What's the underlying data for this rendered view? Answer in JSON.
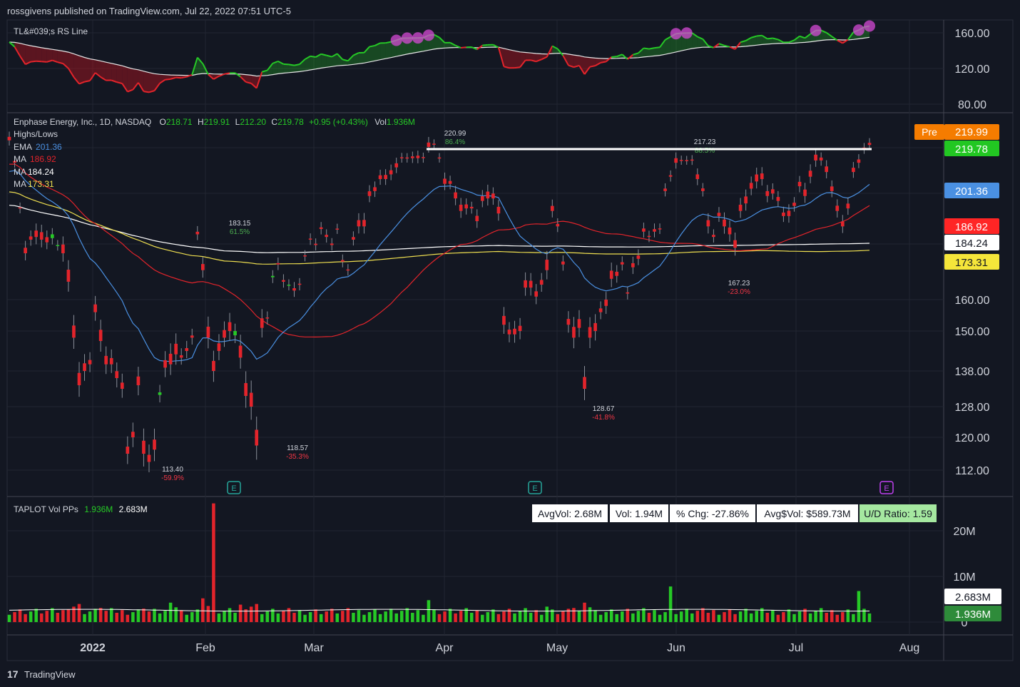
{
  "header": {
    "publisher": "rossgivens published on TradingView.com, Jul 22, 2022 07:51 UTC-5"
  },
  "footer": {
    "brand": "TradingView"
  },
  "colors": {
    "bg": "#131722",
    "panel": "#161a25",
    "grid": "#222631",
    "up": "#26c926",
    "down": "#e3242b",
    "text": "#d1d4dc",
    "ema": "#4a90e2",
    "ma1": "#e3242b",
    "ma2": "#ffffff",
    "ma3": "#f0e050",
    "pre": "#f57c00",
    "price": "#22c722",
    "magenta": "#d54ad5"
  },
  "x_axis": {
    "labels": [
      "2022",
      "Feb",
      "Mar",
      "Apr",
      "May",
      "Jun",
      "Jul",
      "Aug"
    ]
  },
  "rs_panel": {
    "title": "TL&#039;s RS Line",
    "y_ticks": [
      "160.00",
      "120.00",
      "80.00"
    ],
    "y_values": [
      160,
      120,
      80
    ]
  },
  "price_panel": {
    "legend": {
      "name": "Enphase Energy, Inc., 1D, NASDAQ",
      "o_label": "O",
      "o": "218.71",
      "h_label": "H",
      "h": "219.91",
      "l_label": "L",
      "l": "212.20",
      "c_label": "C",
      "c": "219.78",
      "change": "+0.95 (+0.43%)",
      "vol_label": "Vol",
      "vol": "1.936M",
      "highs_lows": "Highs/Lows",
      "ema_label": "EMA",
      "ema_value": "201.36",
      "ma1_label": "MA",
      "ma1_value": "186.92",
      "ma2_label": "MA",
      "ma2_value": "184.24",
      "ma3_label": "MA",
      "ma3_value": "173.31"
    },
    "y_ticks": [
      "160.00",
      "150.00",
      "138.00",
      "128.00",
      "120.00",
      "112.00"
    ],
    "y_values": [
      160,
      150,
      138,
      128,
      120,
      112
    ],
    "badges": {
      "pre_label": "Pre",
      "pre_value": "219.99",
      "last": "219.78",
      "ema": "201.36",
      "ma1": "186.92",
      "ma2": "184.24",
      "ma3": "173.31"
    },
    "pivots": [
      {
        "price": "220.99",
        "pct": "86.4%",
        "up": true
      },
      {
        "price": "217.23",
        "pct": "88.5%",
        "up": true
      },
      {
        "price": "183.15",
        "pct": "61.5%",
        "up": true
      },
      {
        "price": "113.40",
        "pct": "-59.9%",
        "up": false
      },
      {
        "price": "118.57",
        "pct": "-35.3%",
        "up": false
      },
      {
        "price": "128.67",
        "pct": "-41.8%",
        "up": false
      },
      {
        "price": "167.23",
        "pct": "-23.0%",
        "up": false
      }
    ],
    "earnings_marker": "E"
  },
  "volume_panel": {
    "title": "TAPLOT Vol PPs",
    "v1": "1.936M",
    "v2": "2.683M",
    "y_ticks": [
      "20M",
      "10M",
      "0"
    ],
    "badges": {
      "avg": "2.683M",
      "last": "1.936M"
    },
    "stats": [
      {
        "label": "AvgVol: 2.68M"
      },
      {
        "label": "Vol: 1.94M"
      },
      {
        "label": "% Chg: -27.86%"
      },
      {
        "label": "Avg$Vol: $589.73M"
      },
      {
        "label": "U/D Ratio: 1.59"
      }
    ]
  },
  "chart_data": {
    "type": "candlestick",
    "ticker": "Enphase Energy, Inc., 1D, NASDAQ",
    "candles": [
      [
        -20,
        222
      ],
      [
        -10,
        212
      ],
      [
        -5,
        193
      ],
      [
        -25,
        176
      ],
      [
        -15,
        181
      ],
      [
        -30,
        182
      ],
      [
        -35,
        181
      ],
      [
        -24,
        180
      ],
      [
        18,
        183
      ],
      [
        2,
        179
      ],
      [
        -40,
        176
      ],
      [
        -52,
        166
      ],
      [
        -52,
        148
      ],
      [
        -48,
        134
      ],
      [
        -32,
        138
      ],
      [
        -18,
        140
      ],
      [
        -31,
        156
      ],
      [
        -47,
        147
      ],
      [
        -35,
        140
      ],
      [
        -26,
        140
      ],
      [
        -27,
        136
      ],
      [
        -24,
        133
      ],
      [
        -24,
        116
      ],
      [
        -20,
        120
      ],
      [
        -34,
        134
      ],
      [
        -44,
        116
      ],
      [
        -24,
        114
      ],
      [
        -34,
        117
      ],
      [
        10,
        132
      ],
      [
        -31,
        139
      ],
      [
        -44,
        140
      ],
      [
        -44,
        143
      ],
      [
        -10,
        142
      ],
      [
        -12,
        144
      ],
      [
        -9,
        148
      ],
      [
        -12,
        183
      ],
      [
        -27,
        170
      ],
      [
        -47,
        148
      ],
      [
        -42,
        138
      ],
      [
        -32,
        144
      ],
      [
        -32,
        148
      ],
      [
        -39,
        150
      ],
      [
        18,
        150
      ],
      [
        -50,
        142
      ],
      [
        -50,
        131
      ],
      [
        -54,
        128
      ],
      [
        -55,
        118
      ],
      [
        -38,
        151
      ],
      [
        -4,
        154
      ],
      [
        6,
        168
      ],
      [
        -6,
        172
      ],
      [
        -7,
        166
      ],
      [
        1,
        165
      ],
      [
        -10,
        163
      ],
      [
        -4,
        165
      ],
      [
        -3,
        175
      ],
      [
        -5,
        181
      ],
      [
        -6,
        179
      ],
      [
        -8,
        185
      ],
      [
        -10,
        182
      ],
      [
        -7,
        179
      ],
      [
        -2,
        185
      ],
      [
        -7,
        173
      ],
      [
        -3,
        170
      ],
      [
        -12,
        181
      ],
      [
        -30,
        186
      ],
      [
        -31,
        186
      ],
      [
        -24,
        198
      ],
      [
        -20,
        200
      ],
      [
        -20,
        205
      ],
      [
        -22,
        205
      ],
      [
        -22,
        207
      ],
      [
        -22,
        210
      ],
      [
        -5,
        214
      ],
      [
        -4,
        214
      ],
      [
        -10,
        214
      ],
      [
        -14,
        214
      ],
      [
        -6,
        214
      ],
      [
        -25,
        219
      ],
      [
        -6,
        220
      ],
      [
        -4,
        214
      ],
      [
        -27,
        203
      ],
      [
        -15,
        203
      ],
      [
        -31,
        197
      ],
      [
        -31,
        192
      ],
      [
        -20,
        193
      ],
      [
        -8,
        193
      ],
      [
        -26,
        188
      ],
      [
        -24,
        196
      ],
      [
        -35,
        197
      ],
      [
        -25,
        197
      ],
      [
        -33,
        191
      ],
      [
        -35,
        152
      ],
      [
        -20,
        149
      ],
      [
        -24,
        149
      ],
      [
        -23,
        150
      ],
      [
        -31,
        164
      ],
      [
        -29,
        164
      ],
      [
        -22,
        161
      ],
      [
        -20,
        165
      ],
      [
        -46,
        170
      ],
      [
        -25,
        192
      ],
      [
        -12,
        186
      ],
      [
        -13,
        172
      ],
      [
        -23,
        152
      ],
      [
        -46,
        148
      ],
      [
        -35,
        151
      ],
      [
        -46,
        133
      ],
      [
        -45,
        148
      ],
      [
        -35,
        150
      ],
      [
        -15,
        156
      ],
      [
        -25,
        158
      ],
      [
        -35,
        167
      ],
      [
        -18,
        168
      ],
      [
        -10,
        172
      ],
      [
        -5,
        162
      ],
      [
        -18,
        171
      ],
      [
        -15,
        174
      ],
      [
        -15,
        184
      ],
      [
        -5,
        182
      ],
      [
        -12,
        184
      ],
      [
        -3,
        185
      ],
      [
        -13,
        200
      ],
      [
        -8,
        206
      ],
      [
        -25,
        212
      ],
      [
        -3,
        213
      ],
      [
        -2,
        213
      ],
      [
        -5,
        213
      ],
      [
        -25,
        205
      ],
      [
        -14,
        200
      ],
      [
        -30,
        186
      ],
      [
        -10,
        182
      ],
      [
        -16,
        190
      ],
      [
        -33,
        186
      ],
      [
        -32,
        183
      ],
      [
        -35,
        178
      ],
      [
        -31,
        192
      ],
      [
        -35,
        195
      ],
      [
        -30,
        201
      ],
      [
        -37,
        204
      ],
      [
        -30,
        205
      ],
      [
        -25,
        198
      ],
      [
        -22,
        199
      ],
      [
        -20,
        196
      ],
      [
        -17,
        190
      ],
      [
        -26,
        190
      ],
      [
        -16,
        194
      ],
      [
        -23,
        202
      ],
      [
        -33,
        198
      ],
      [
        -32,
        206
      ],
      [
        -32,
        213
      ],
      [
        -16,
        213
      ],
      [
        -30,
        208
      ],
      [
        -24,
        200
      ],
      [
        -26,
        192
      ],
      [
        -24,
        186
      ],
      [
        -24,
        193
      ],
      [
        -23,
        208
      ],
      [
        -18,
        212
      ],
      [
        -9,
        218
      ],
      [
        -12,
        219.9
      ]
    ],
    "price_pivots": [
      220.99,
      217.23,
      183.15,
      113.4,
      118.57,
      128.67,
      167.23
    ],
    "moving_averages": {
      "EMA": 201.36,
      "MA_1": 186.92,
      "MA_2": 184.24,
      "MA_3": 173.31
    },
    "last_close": 219.78,
    "premarket": 219.99,
    "volume_max_spike": 26
  }
}
